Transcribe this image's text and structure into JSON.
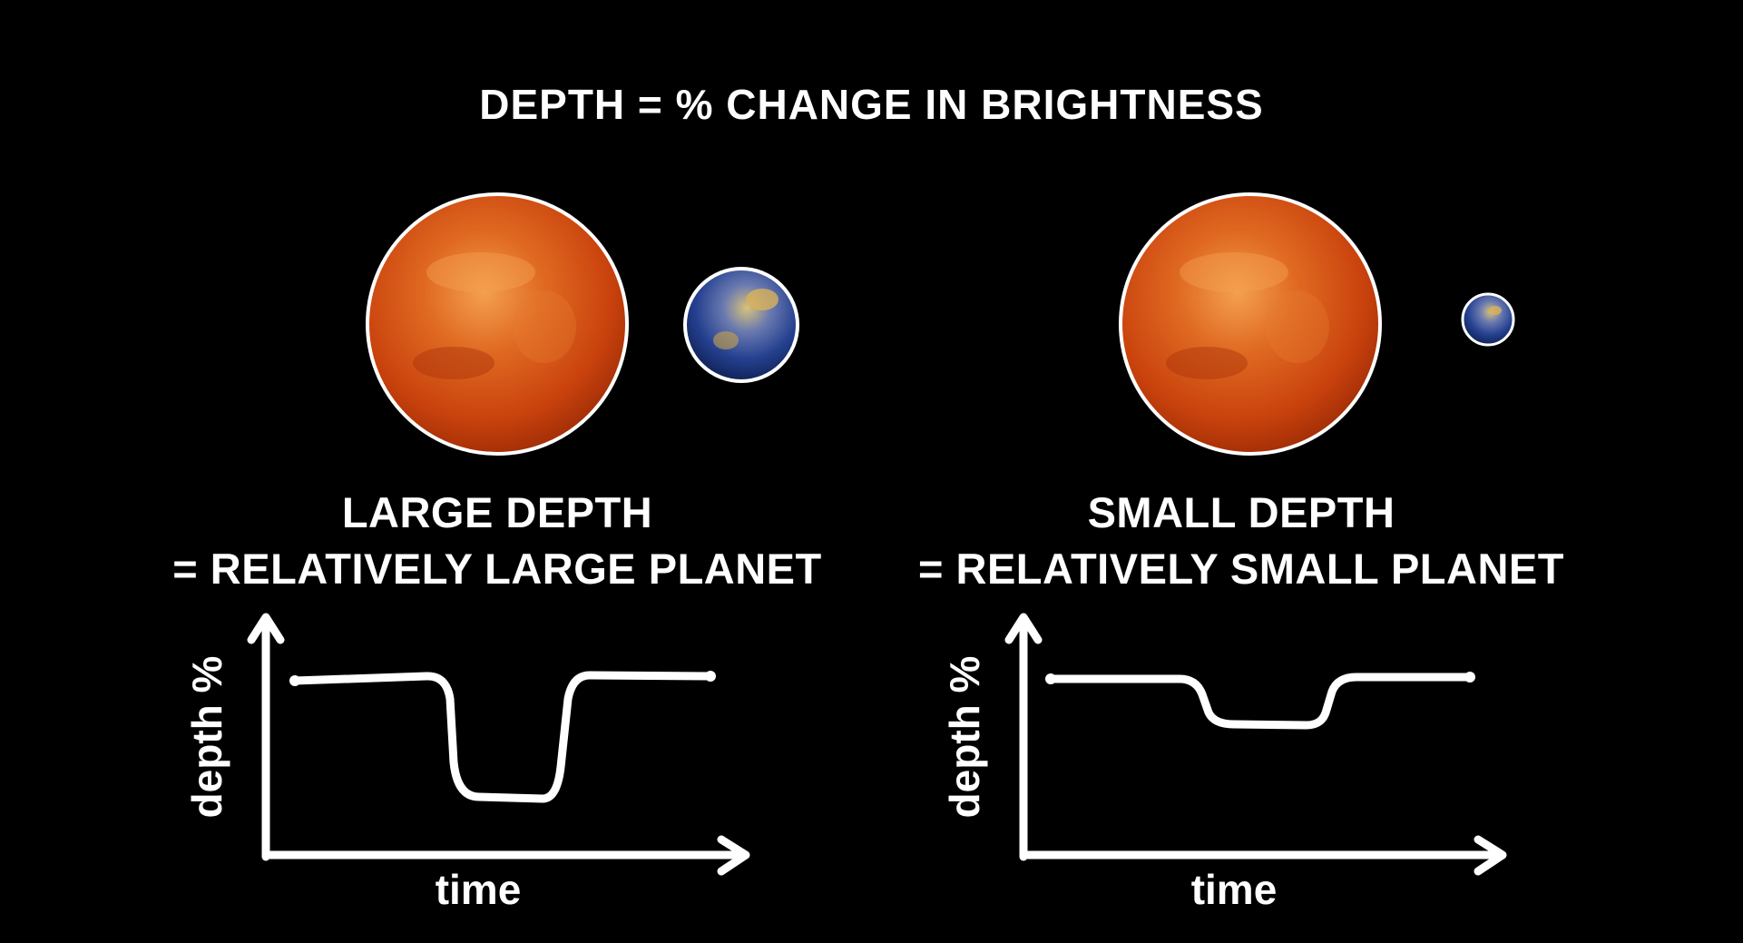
{
  "title": "DEPTH = % CHANGE IN BRIGHTNESS",
  "panels": [
    {
      "caption_line1": "LARGE DEPTH",
      "caption_line2": "= RELATIVELY LARGE PLANET",
      "y_axis_label": "depth %",
      "x_axis_label": "time"
    },
    {
      "caption_line1": "SMALL DEPTH",
      "caption_line2": "= RELATIVELY SMALL PLANET",
      "y_axis_label": "depth %",
      "x_axis_label": "time"
    }
  ],
  "colors": {
    "background": "#000000",
    "star": "#d2450e",
    "star_highlight": "#f08a3a",
    "planet_blue": "#1f3c8a",
    "planet_gold": "#c9a54a",
    "outline": "#ffffff"
  }
}
